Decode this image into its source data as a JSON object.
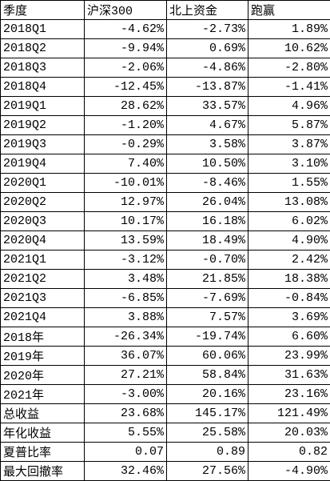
{
  "table": {
    "header": [
      "季度",
      "沪深300",
      "北上资金",
      "跑赢"
    ],
    "rows": [
      [
        "2018Q1",
        "-4.62%",
        "-2.73%",
        "1.89%"
      ],
      [
        "2018Q2",
        "-9.94%",
        "0.69%",
        "10.62%"
      ],
      [
        "2018Q3",
        "-2.06%",
        "-4.86%",
        "-2.80%"
      ],
      [
        "2018Q4",
        "-12.45%",
        "-13.87%",
        "-1.41%"
      ],
      [
        "2019Q1",
        "28.62%",
        "33.57%",
        "4.96%"
      ],
      [
        "2019Q2",
        "-1.20%",
        "4.67%",
        "5.87%"
      ],
      [
        "2019Q3",
        "-0.29%",
        "3.58%",
        "3.87%"
      ],
      [
        "2019Q4",
        "7.40%",
        "10.50%",
        "3.10%"
      ],
      [
        "2020Q1",
        "-10.01%",
        "-8.46%",
        "1.55%"
      ],
      [
        "2020Q2",
        "12.97%",
        "26.04%",
        "13.08%"
      ],
      [
        "2020Q3",
        "10.17%",
        "16.18%",
        "6.02%"
      ],
      [
        "2020Q4",
        "13.59%",
        "18.49%",
        "4.90%"
      ],
      [
        "2021Q1",
        "-3.12%",
        "-0.70%",
        "2.42%"
      ],
      [
        "2021Q2",
        "3.48%",
        "21.85%",
        "18.38%"
      ],
      [
        "2021Q3",
        "-6.85%",
        "-7.69%",
        "-0.84%"
      ],
      [
        "2021Q4",
        "3.88%",
        "7.57%",
        "3.69%"
      ],
      [
        "2018年",
        "-26.34%",
        "-19.74%",
        "6.60%"
      ],
      [
        "2019年",
        "36.07%",
        "60.06%",
        "23.99%"
      ],
      [
        "2020年",
        "27.21%",
        "58.84%",
        "31.63%"
      ],
      [
        "2021年",
        "-3.00%",
        "20.16%",
        "23.16%"
      ],
      [
        "总收益",
        "23.68%",
        "145.17%",
        "121.49%"
      ],
      [
        "年化收益",
        "5.55%",
        "25.58%",
        "20.03%"
      ],
      [
        "夏普比率",
        "0.07",
        "0.89",
        "0.82"
      ],
      [
        "最大回撤率",
        "32.46%",
        "27.56%",
        "-4.90%"
      ]
    ]
  }
}
